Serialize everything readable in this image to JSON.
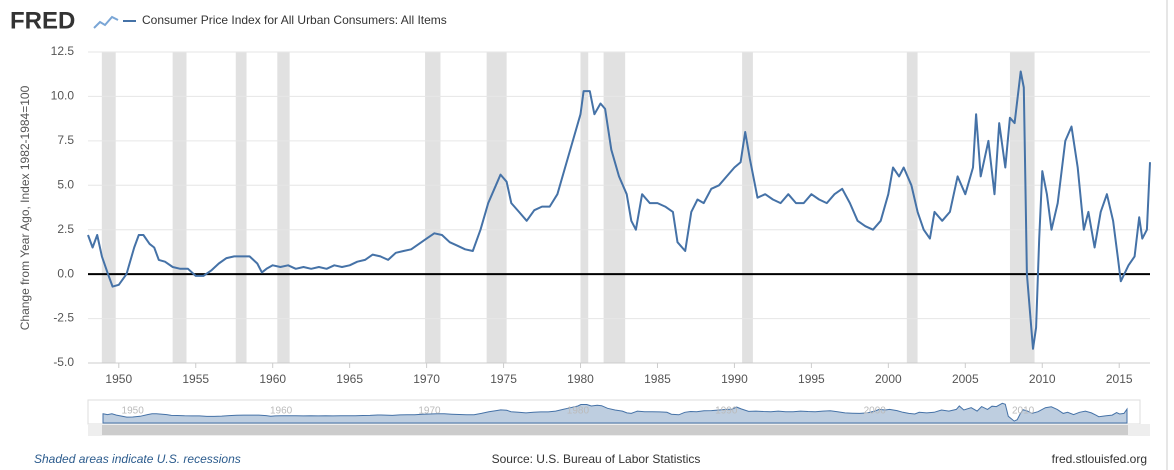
{
  "chart_data": {
    "type": "line",
    "logo": "FRED",
    "y_label": "Change from Year Ago, Index 1982-1984=100",
    "note": "Shaded areas indicate U.S. recessions",
    "source": "Source: U.S. Bureau of Labor Statistics",
    "site": "fred.stlouisfed.org",
    "xlim": [
      1948,
      2017
    ],
    "ylim": [
      -5,
      12.5
    ],
    "xticks": [
      1950,
      1955,
      1960,
      1965,
      1970,
      1975,
      1980,
      1985,
      1990,
      1995,
      2000,
      2005,
      2010,
      2015
    ],
    "yticks": [
      {
        "value": -5,
        "label": "-5.0"
      },
      -2.5,
      {
        "value": 0,
        "label": "0.0"
      },
      2.5,
      {
        "value": 5,
        "label": "5.0"
      },
      7.5,
      {
        "value": 10,
        "label": "10.0"
      },
      12.5
    ],
    "grid": "y",
    "recessions": [
      [
        1948.9,
        1949.8
      ],
      [
        1953.5,
        1954.4
      ],
      [
        1957.6,
        1958.3
      ],
      [
        1960.3,
        1961.1
      ],
      [
        1969.9,
        1970.9
      ],
      [
        1973.9,
        1975.2
      ],
      [
        1980.0,
        1980.5
      ],
      [
        1981.5,
        1982.9
      ],
      [
        1990.5,
        1991.2
      ],
      [
        2001.2,
        2001.9
      ],
      [
        2007.9,
        2009.5
      ]
    ],
    "navigator_xticks": [
      1950,
      1960,
      1970,
      1980,
      1990,
      2000,
      2010
    ],
    "x": [
      1948.0,
      1948.3,
      1948.6,
      1948.9,
      1949.3,
      1949.6,
      1950.0,
      1950.5,
      1951.0,
      1951.3,
      1951.6,
      1952.0,
      1952.3,
      1952.6,
      1953.0,
      1953.5,
      1954.0,
      1954.5,
      1955.0,
      1955.5,
      1956.0,
      1956.5,
      1957.0,
      1957.5,
      1958.0,
      1958.5,
      1959.0,
      1959.3,
      1959.6,
      1960.0,
      1960.5,
      1961.0,
      1961.5,
      1962.0,
      1962.5,
      1963.0,
      1963.5,
      1964.0,
      1964.5,
      1965.0,
      1965.5,
      1966.0,
      1966.5,
      1967.0,
      1967.5,
      1968.0,
      1968.5,
      1969.0,
      1969.5,
      1970.0,
      1970.5,
      1971.0,
      1971.5,
      1972.0,
      1972.5,
      1973.0,
      1973.5,
      1974.0,
      1974.5,
      1974.8,
      1975.2,
      1975.5,
      1976.0,
      1976.5,
      1977.0,
      1977.5,
      1978.0,
      1978.5,
      1979.0,
      1979.5,
      1980.0,
      1980.2,
      1980.6,
      1980.9,
      1981.3,
      1981.6,
      1982.0,
      1982.5,
      1983.0,
      1983.3,
      1983.6,
      1984.0,
      1984.5,
      1985.0,
      1985.5,
      1986.0,
      1986.3,
      1986.8,
      1987.2,
      1987.6,
      1988.0,
      1988.5,
      1989.0,
      1989.5,
      1990.0,
      1990.4,
      1990.7,
      1991.0,
      1991.5,
      1992.0,
      1992.5,
      1993.0,
      1993.5,
      1994.0,
      1994.5,
      1995.0,
      1995.5,
      1996.0,
      1996.5,
      1997.0,
      1997.5,
      1998.0,
      1998.5,
      1999.0,
      1999.5,
      2000.0,
      2000.3,
      2000.7,
      2001.0,
      2001.5,
      2001.9,
      2002.3,
      2002.7,
      2003.0,
      2003.5,
      2004.0,
      2004.5,
      2005.0,
      2005.5,
      2005.7,
      2006.0,
      2006.5,
      2006.9,
      2007.2,
      2007.6,
      2007.9,
      2008.2,
      2008.6,
      2008.8,
      2009.0,
      2009.4,
      2009.6,
      2009.8,
      2010.0,
      2010.3,
      2010.6,
      2011.0,
      2011.5,
      2011.9,
      2012.3,
      2012.7,
      2013.0,
      2013.4,
      2013.8,
      2014.2,
      2014.6,
      2014.9,
      2015.1,
      2015.6,
      2016.0,
      2016.3,
      2016.5,
      2016.8,
      2017.0
    ],
    "series": [
      {
        "name": "Consumer Price Index for All Urban Consumers: All Items",
        "color": "#4572a7",
        "values": [
          2.2,
          1.5,
          2.2,
          1.0,
          0.0,
          -0.7,
          -0.6,
          0.0,
          1.5,
          2.2,
          2.2,
          1.7,
          1.5,
          0.8,
          0.7,
          0.4,
          0.3,
          0.3,
          -0.1,
          -0.1,
          0.2,
          0.6,
          0.9,
          1.0,
          1.0,
          1.0,
          0.6,
          0.1,
          0.3,
          0.5,
          0.4,
          0.5,
          0.3,
          0.4,
          0.3,
          0.4,
          0.3,
          0.5,
          0.4,
          0.5,
          0.7,
          0.8,
          1.1,
          1.0,
          0.8,
          1.2,
          1.3,
          1.4,
          1.7,
          2.0,
          2.3,
          2.2,
          1.8,
          1.6,
          1.4,
          1.3,
          2.5,
          4.0,
          5.0,
          5.6,
          5.2,
          4.0,
          3.5,
          3.0,
          3.6,
          3.8,
          3.8,
          4.5,
          6.0,
          7.5,
          9.0,
          10.3,
          10.3,
          9.0,
          9.6,
          9.3,
          7.0,
          5.5,
          4.5,
          3.0,
          2.5,
          4.5,
          4.0,
          4.0,
          3.8,
          3.5,
          1.8,
          1.3,
          3.5,
          4.2,
          4.0,
          4.8,
          5.0,
          5.5,
          6.0,
          6.3,
          8.0,
          6.5,
          4.3,
          4.5,
          4.2,
          4.0,
          4.5,
          4.0,
          4.0,
          4.5,
          4.2,
          4.0,
          4.5,
          4.8,
          4.0,
          3.0,
          2.7,
          2.5,
          3.0,
          4.5,
          6.0,
          5.5,
          6.0,
          5.0,
          3.5,
          2.5,
          2.0,
          3.5,
          3.0,
          3.5,
          5.5,
          4.5,
          6.0,
          9.0,
          5.5,
          7.5,
          4.5,
          8.5,
          6.0,
          8.8,
          8.5,
          11.4,
          10.5,
          0.0,
          -4.2,
          -3.0,
          2.0,
          5.8,
          4.5,
          2.5,
          4.0,
          7.5,
          8.3,
          6.0,
          2.5,
          3.5,
          1.5,
          3.5,
          4.5,
          3.0,
          1.0,
          -0.4,
          0.5,
          1.0,
          3.2,
          2.0,
          2.5,
          6.3
        ]
      }
    ]
  }
}
